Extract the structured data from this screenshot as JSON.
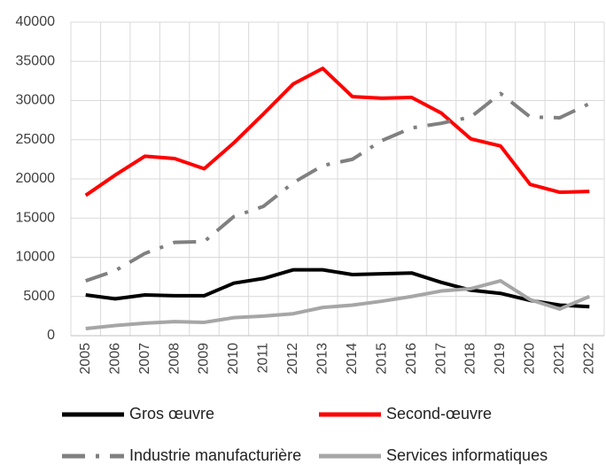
{
  "chart_data": {
    "type": "line",
    "categories": [
      "2005",
      "2006",
      "2007",
      "2008",
      "2009",
      "2010",
      "2011",
      "2012",
      "2013",
      "2014",
      "2015",
      "2016",
      "2017",
      "2018",
      "2019",
      "2020",
      "2021",
      "2022"
    ],
    "series": [
      {
        "name": "Gros œuvre",
        "color": "#000000",
        "dash": "solid",
        "values": [
          5200,
          4700,
          5200,
          5100,
          5100,
          6700,
          7300,
          8400,
          8400,
          7800,
          7900,
          8000,
          6800,
          5800,
          5400,
          4500,
          3900,
          3700
        ]
      },
      {
        "name": "Second-œuvre",
        "color": "#ff0000",
        "dash": "solid",
        "values": [
          17900,
          20500,
          22900,
          22600,
          21300,
          24600,
          28300,
          32100,
          34100,
          30500,
          30300,
          30400,
          28400,
          25100,
          24200,
          19300,
          18300,
          18400
        ]
      },
      {
        "name": "Industrie manufacturière",
        "color": "#808080",
        "dash": "longdashdot",
        "values": [
          7000,
          8300,
          10500,
          11900,
          12000,
          15200,
          16500,
          19500,
          21700,
          22500,
          24900,
          26500,
          27100,
          27900,
          30900,
          27900,
          27800,
          29600
        ]
      },
      {
        "name": "Services informatiques",
        "color": "#a6a6a6",
        "dash": "solid",
        "values": [
          900,
          1300,
          1600,
          1800,
          1700,
          2300,
          2500,
          2800,
          3600,
          3900,
          4400,
          5000,
          5700,
          6000,
          7000,
          4600,
          3400,
          5000
        ]
      }
    ],
    "ylim": [
      0,
      40000
    ],
    "yticks": [
      0,
      5000,
      10000,
      15000,
      20000,
      25000,
      30000,
      35000,
      40000
    ],
    "grid": true,
    "legend": "bottom"
  }
}
